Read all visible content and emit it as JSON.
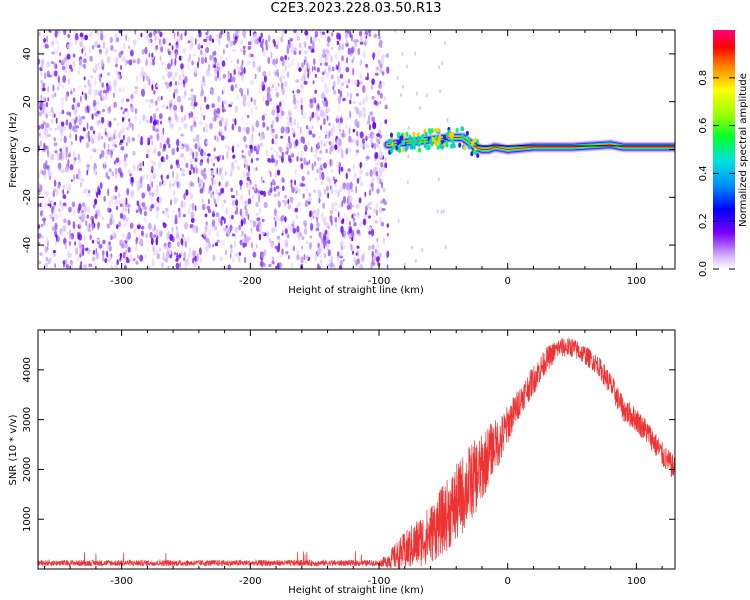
{
  "title": "C2E3.2023.228.03.50.R13",
  "chart_data": [
    {
      "type": "heatmap",
      "xlabel": "Height of straight line (km)",
      "ylabel": "Frequency (Hz)",
      "xlim": [
        -365,
        130
      ],
      "ylim": [
        -50,
        50
      ],
      "xticks": [
        -300,
        -200,
        -100,
        0,
        100
      ],
      "yticks": [
        -40,
        -20,
        0,
        20,
        40
      ],
      "noise_region_x": [
        -365,
        -93
      ],
      "signal_track": {
        "x": [
          -93,
          -80,
          -60,
          -45,
          -35,
          -30,
          -25,
          -20,
          -15,
          -10,
          0,
          20,
          50,
          80,
          90,
          100,
          110,
          130
        ],
        "freq": [
          2,
          3,
          4,
          5,
          5,
          3,
          1,
          0,
          0,
          1,
          0,
          1,
          1,
          2,
          1,
          1,
          1,
          1
        ]
      },
      "colorbar": {
        "label": "Normalized spectral amplitude",
        "ticks": [
          0.0,
          0.2,
          0.4,
          0.6,
          0.8
        ],
        "range": [
          0,
          1
        ]
      }
    },
    {
      "type": "line",
      "xlabel": "Height of straight line (km)",
      "ylabel": "SNR (10 * v/v)",
      "xlim": [
        -365,
        130
      ],
      "ylim": [
        0,
        4800
      ],
      "xticks": [
        -300,
        -200,
        -100,
        0,
        100
      ],
      "yticks": [
        1000,
        2000,
        3000,
        4000
      ],
      "color": "#ee3333",
      "envelope": {
        "x": [
          -365,
          -100,
          -95,
          -80,
          -60,
          -50,
          -40,
          -30,
          -20,
          -15,
          -10,
          -5,
          0,
          10,
          20,
          30,
          40,
          50,
          60,
          70,
          80,
          90,
          100,
          110,
          120,
          130
        ],
        "mean": [
          120,
          120,
          150,
          350,
          700,
          1000,
          1300,
          1700,
          2000,
          2300,
          2500,
          2600,
          2900,
          3400,
          3800,
          4200,
          4450,
          4450,
          4300,
          4100,
          3700,
          3200,
          3000,
          2700,
          2300,
          2000
        ],
        "spread": [
          60,
          60,
          120,
          400,
          600,
          700,
          800,
          800,
          700,
          600,
          500,
          500,
          400,
          300,
          300,
          250,
          200,
          200,
          200,
          200,
          250,
          250,
          250,
          250,
          250,
          250
        ]
      }
    }
  ]
}
